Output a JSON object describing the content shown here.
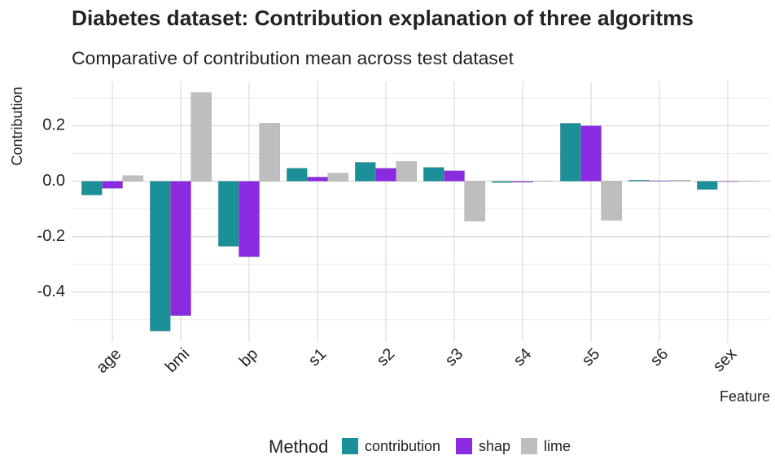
{
  "chart_data": {
    "type": "bar",
    "title": "Diabetes dataset: Contribution explanation of three algoritms",
    "subtitle": "Comparative of contribution mean across test dataset",
    "x_label": "Feature",
    "y_label": "Contribution",
    "legend_title": "Method",
    "legend_position": "bottom",
    "grid": true,
    "categories": [
      "age",
      "bmi",
      "bp",
      "s1",
      "s2",
      "s3",
      "s4",
      "s5",
      "s6",
      "sex"
    ],
    "series": [
      {
        "name": "contribution",
        "color": "#1b9098",
        "values": [
          -0.05,
          -0.541,
          -0.235,
          0.047,
          0.068,
          0.05,
          -0.005,
          0.209,
          0.004,
          -0.03
        ]
      },
      {
        "name": "shap",
        "color": "#8a2be2",
        "values": [
          -0.026,
          -0.485,
          -0.273,
          0.015,
          0.047,
          0.038,
          -0.004,
          0.2,
          0.002,
          -0.002
        ]
      },
      {
        "name": "lime",
        "color": "#bebebe",
        "values": [
          0.02,
          0.32,
          0.209,
          0.029,
          0.071,
          -0.144,
          0.001,
          -0.141,
          0.004,
          0.001
        ]
      }
    ],
    "ylim": [
      -0.58,
      0.36
    ],
    "yticks": [
      0.2,
      {
        "value": 0,
        "label": "0.0"
      },
      -0.2,
      -0.4
    ],
    "minor_yticks": [
      0.3,
      0.1,
      -0.1,
      -0.3,
      -0.5
    ]
  }
}
